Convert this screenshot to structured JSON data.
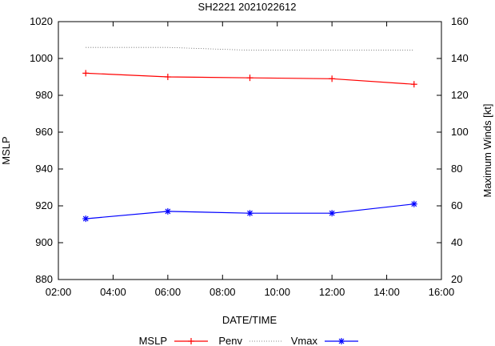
{
  "chart_data": {
    "type": "line",
    "title": "SH2221 2021022612",
    "xlabel": "DATE/TIME",
    "ylabel_left": "MSLP",
    "ylabel_right": "Maximum Winds [kt]",
    "x_ticks": [
      "02:00",
      "04:00",
      "06:00",
      "08:00",
      "10:00",
      "12:00",
      "14:00",
      "16:00"
    ],
    "x_range_hours": [
      2,
      16
    ],
    "y_left_range": [
      880,
      1020
    ],
    "y_left_ticks": [
      880,
      900,
      920,
      940,
      960,
      980,
      1000,
      1020
    ],
    "y_right_range": [
      20,
      160
    ],
    "y_right_ticks": [
      20,
      40,
      60,
      80,
      100,
      120,
      140,
      160
    ],
    "x_hours": [
      3,
      6,
      9,
      12,
      15
    ],
    "series": [
      {
        "name": "MSLP",
        "axis": "left",
        "values": [
          992,
          990,
          989.5,
          989,
          986
        ],
        "color": "#ff0000",
        "marker": "plus",
        "style": "solid"
      },
      {
        "name": "Penv",
        "axis": "left",
        "values": [
          1006,
          1006,
          1004.5,
          1004.5,
          1004.5
        ],
        "color": "#606060",
        "marker": "none",
        "style": "dotted"
      },
      {
        "name": "Vmax",
        "axis": "right",
        "values": [
          53,
          57,
          56,
          56,
          61
        ],
        "color": "#0000ff",
        "marker": "star",
        "style": "solid"
      }
    ],
    "legend": [
      "MSLP",
      "Penv",
      "Vmax"
    ]
  }
}
